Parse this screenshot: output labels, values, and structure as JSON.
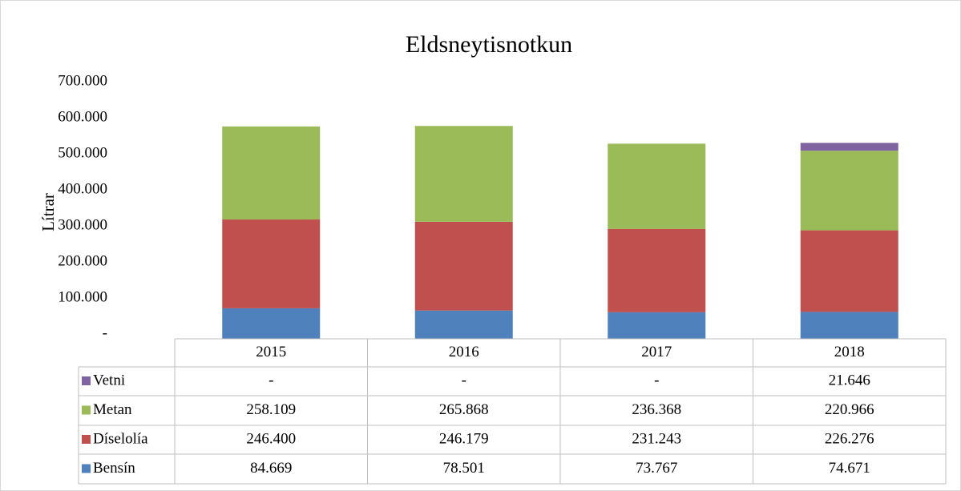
{
  "chart_data": {
    "type": "stacked_bar",
    "title": "Eldsneytisnotkun",
    "y_label": "Lítrar",
    "categories": [
      "2015",
      "2016",
      "2017",
      "2018"
    ],
    "series": [
      {
        "name": "Bensín",
        "color": "#4f81bd",
        "values": [
          84669,
          78501,
          73767,
          74671
        ],
        "value_labels": [
          "84.669",
          "78.501",
          "73.767",
          "74.671"
        ]
      },
      {
        "name": "Díselolía",
        "color": "#c0504d",
        "values": [
          246400,
          246179,
          231243,
          226276
        ],
        "value_labels": [
          "246.400",
          "246.179",
          "231.243",
          "226.276"
        ]
      },
      {
        "name": "Metan",
        "color": "#9bbb59",
        "values": [
          258109,
          265868,
          236368,
          220966
        ],
        "value_labels": [
          "258.109",
          "265.868",
          "236.368",
          "220.966"
        ]
      },
      {
        "name": "Vetni",
        "color": "#8064a2",
        "values": [
          0,
          0,
          0,
          21646
        ],
        "value_labels": [
          "-",
          "-",
          "-",
          "21.646"
        ]
      }
    ],
    "ylim": [
      0,
      700000
    ],
    "yticks": [
      {
        "value": 0,
        "label": "-"
      },
      {
        "value": 100000,
        "label": "100.000"
      },
      {
        "value": 200000,
        "label": "200.000"
      },
      {
        "value": 300000,
        "label": "300.000"
      },
      {
        "value": 400000,
        "label": "400.000"
      },
      {
        "value": 500000,
        "label": "500.000"
      },
      {
        "value": 600000,
        "label": "600.000"
      },
      {
        "value": 700000,
        "label": "700.000"
      }
    ],
    "data_table": true
  }
}
